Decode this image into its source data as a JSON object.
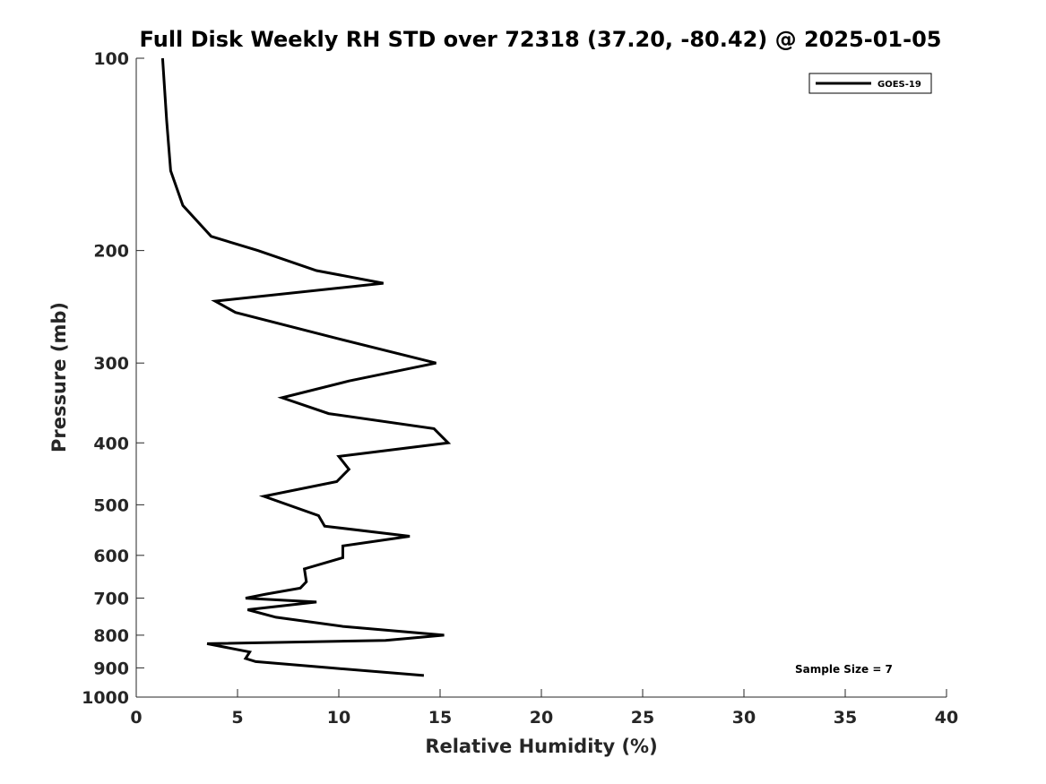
{
  "chart_data": {
    "type": "line",
    "title": "Full Disk Weekly RH STD over 72318 (37.20, -80.42) @ 2025-01-05",
    "xlabel": "Relative Humidity (%)",
    "ylabel": "Pressure (mb)",
    "xlim": [
      0,
      40
    ],
    "ylim": [
      100,
      1000
    ],
    "yscale": "log",
    "y_reversed": true,
    "x_ticks": [
      0,
      5,
      10,
      15,
      20,
      25,
      30,
      35,
      40
    ],
    "y_ticks": [
      100,
      200,
      300,
      400,
      500,
      600,
      700,
      800,
      900,
      1000
    ],
    "grid": false,
    "legend_position": "top-right",
    "annotation": "Sample Size = 7",
    "series": [
      {
        "name": "GOES-19",
        "color": "#000000",
        "points": [
          [
            1.3,
            100
          ],
          [
            1.5,
            125
          ],
          [
            1.7,
            150
          ],
          [
            2.3,
            170
          ],
          [
            3.7,
            190
          ],
          [
            6.0,
            200
          ],
          [
            8.9,
            215
          ],
          [
            12.2,
            225
          ],
          [
            3.9,
            240
          ],
          [
            4.9,
            250
          ],
          [
            10.0,
            275
          ],
          [
            14.8,
            300
          ],
          [
            10.5,
            320
          ],
          [
            7.2,
            340
          ],
          [
            9.5,
            360
          ],
          [
            14.7,
            380
          ],
          [
            15.4,
            400
          ],
          [
            10.0,
            420
          ],
          [
            10.5,
            440
          ],
          [
            9.9,
            460
          ],
          [
            6.3,
            485
          ],
          [
            9.0,
            520
          ],
          [
            9.3,
            540
          ],
          [
            13.5,
            560
          ],
          [
            10.2,
            580
          ],
          [
            10.2,
            605
          ],
          [
            8.3,
            630
          ],
          [
            8.4,
            660
          ],
          [
            8.1,
            675
          ],
          [
            6.4,
            690
          ],
          [
            5.4,
            700
          ],
          [
            8.9,
            710
          ],
          [
            5.5,
            730
          ],
          [
            6.9,
            750
          ],
          [
            10.2,
            775
          ],
          [
            15.2,
            800
          ],
          [
            12.3,
            815
          ],
          [
            3.5,
            825
          ],
          [
            5.6,
            850
          ],
          [
            5.4,
            870
          ],
          [
            5.9,
            880
          ],
          [
            9.6,
            900
          ],
          [
            14.2,
            925
          ]
        ]
      }
    ]
  }
}
